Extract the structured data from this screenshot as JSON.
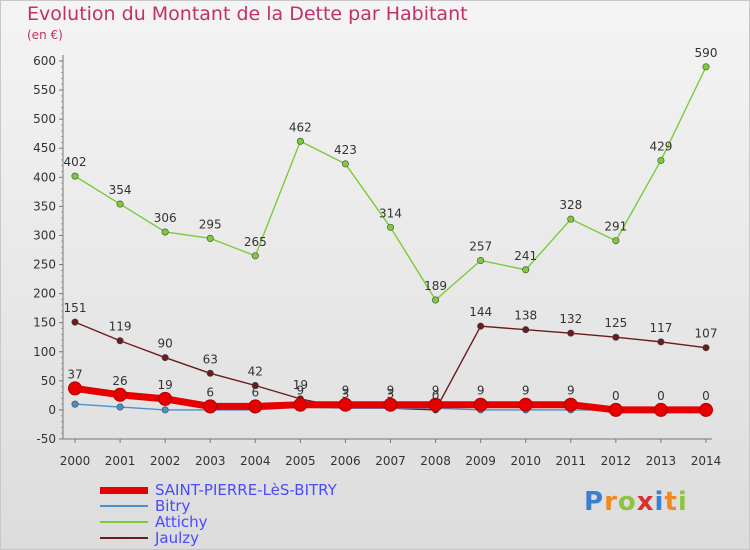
{
  "title": "Evolution du Montant de la Dette par Habitant",
  "unit": "(en €)",
  "logo": {
    "letters": [
      {
        "ch": "P",
        "color": "#3a7fd0"
      },
      {
        "ch": "r",
        "color": "#f08a20"
      },
      {
        "ch": "o",
        "color": "#8cc63f"
      },
      {
        "ch": "x",
        "color": "#d93030"
      },
      {
        "ch": "i",
        "color": "#3a7fd0"
      },
      {
        "ch": "t",
        "color": "#f08a20"
      },
      {
        "ch": "i",
        "color": "#8cc63f"
      }
    ]
  },
  "chart_data": {
    "type": "line",
    "title": "Evolution du Montant de la Dette par Habitant",
    "ylabel": "(en €)",
    "xlabel": "",
    "ylim": [
      -50,
      600
    ],
    "yticks": [
      -50,
      0,
      50,
      100,
      150,
      200,
      250,
      300,
      350,
      400,
      450,
      500,
      550,
      600
    ],
    "categories": [
      "2000",
      "2001",
      "2002",
      "2003",
      "2004",
      "2005",
      "2006",
      "2007",
      "2008",
      "2009",
      "2010",
      "2011",
      "2012",
      "2013",
      "2014"
    ],
    "grid": false,
    "legend_position": "bottom-left",
    "series": [
      {
        "name": "SAINT-PIERRE-LèS-BITRY",
        "color": "#e60000",
        "values": [
          37,
          26,
          19,
          6,
          6,
          9,
          9,
          9,
          9,
          9,
          9,
          9,
          0,
          0,
          0
        ],
        "labels": [
          "37",
          "26",
          "19",
          "6",
          "6",
          "9",
          "9",
          "9",
          "9",
          "9",
          "9",
          "9",
          "0",
          "0",
          "0"
        ]
      },
      {
        "name": "Bitry",
        "color": "#4a90c8",
        "values": [
          10,
          5,
          0,
          0,
          0,
          5,
          3,
          3,
          3,
          0,
          0,
          0,
          0,
          0,
          0
        ],
        "labels": [
          "",
          "",
          "",
          "",
          "",
          "",
          "",
          "",
          "",
          "",
          "",
          "",
          "",
          "",
          ""
        ]
      },
      {
        "name": "Attichy",
        "color": "#7bcb3a",
        "values": [
          402,
          354,
          306,
          295,
          265,
          462,
          423,
          314,
          189,
          257,
          241,
          328,
          291,
          429,
          590
        ],
        "labels": [
          "402",
          "354",
          "306",
          "295",
          "265",
          "462",
          "423",
          "314",
          "189",
          "257",
          "241",
          "328",
          "291",
          "429",
          "590"
        ]
      },
      {
        "name": "Jaulzy",
        "color": "#6b1b1b",
        "values": [
          151,
          119,
          90,
          63,
          42,
          19,
          3,
          3,
          0,
          144,
          138,
          132,
          125,
          117,
          107
        ],
        "labels": [
          "151",
          "119",
          "90",
          "63",
          "42",
          "19",
          "3",
          "3",
          "0",
          "144",
          "138",
          "132",
          "125",
          "117",
          "107"
        ]
      }
    ]
  }
}
